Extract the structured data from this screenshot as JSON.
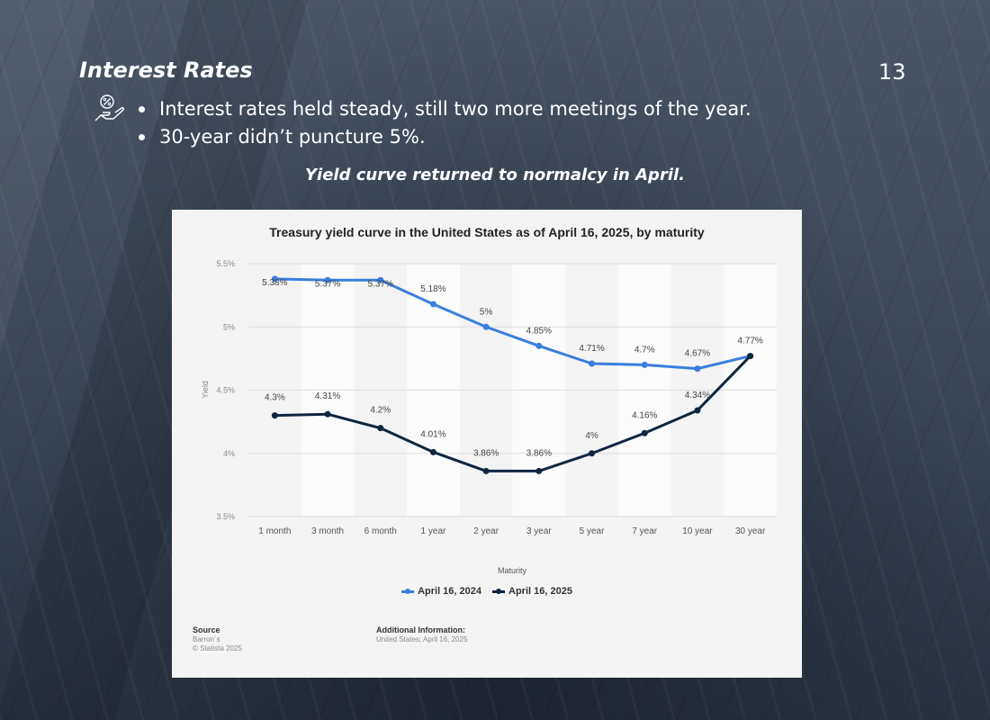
{
  "slide": {
    "title": "Interest Rates",
    "page_number": "13",
    "bullets": [
      "Interest rates held steady, still two more meetings of the year.",
      "30-year didn’t puncture 5%."
    ],
    "subtitle": "Yield curve returned to normalcy in April.",
    "icon": "hand-percent-icon"
  },
  "chart_data": {
    "type": "line",
    "title": "Treasury yield curve in the United States as of April 16, 2025, by maturity",
    "xlabel": "Maturity",
    "ylabel": "Yield",
    "categories": [
      "1 month",
      "3 month",
      "6 month",
      "1 year",
      "2 year",
      "3 year",
      "5 year",
      "7 year",
      "10 year",
      "30 year"
    ],
    "ylim": [
      3.5,
      5.5
    ],
    "yticks": [
      3.5,
      4,
      4.5,
      5,
      5.5
    ],
    "ytick_labels": [
      "3.5%",
      "4%",
      "4.5%",
      "5%",
      "5.5%"
    ],
    "grid": true,
    "legend_position": "bottom",
    "series": [
      {
        "name": "April 16, 2024",
        "color": "#3a7fde",
        "values": [
          5.38,
          5.37,
          5.37,
          5.18,
          5.0,
          4.85,
          4.71,
          4.7,
          4.67,
          4.77
        ],
        "labels": [
          "5.38%",
          "5.37%",
          "5.37%",
          "5.18%",
          "5%",
          "4.85%",
          "4.71%",
          "4.7%",
          "4.67%",
          "4.77%"
        ]
      },
      {
        "name": "April 16, 2025",
        "color": "#0f2640",
        "values": [
          4.3,
          4.31,
          4.2,
          4.01,
          3.86,
          3.86,
          4.0,
          4.16,
          4.34,
          4.77
        ],
        "labels": [
          "4.3%",
          "4.31%",
          "4.2%",
          "4.01%",
          "3.86%",
          "3.86%",
          "4%",
          "4.16%",
          "4.34%",
          ""
        ]
      }
    ],
    "source": {
      "heading": "Source",
      "lines": [
        "Barron`s",
        "© Statista 2025"
      ]
    },
    "additional_info": {
      "heading": "Additional Information:",
      "lines": [
        "United States; April 16, 2025"
      ]
    }
  }
}
